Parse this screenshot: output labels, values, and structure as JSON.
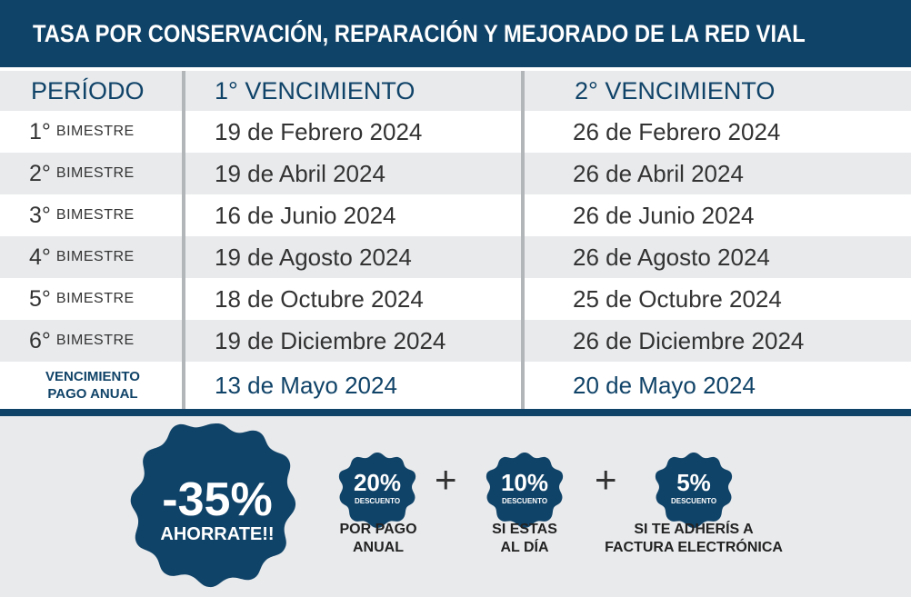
{
  "title": "TASA POR CONSERVACIÓN, REPARACIÓN Y MEJORADO DE LA RED VIAL",
  "colors": {
    "navy": "#104368",
    "stripe": "#e8eaec",
    "text": "#333333"
  },
  "table": {
    "headers": {
      "period": "PERÍODO",
      "first_due": "1° VENCIMIENTO",
      "second_due": "2° VENCIMIENTO"
    },
    "rows": [
      {
        "num": "1°",
        "label": "BIMESTRE",
        "first": "19 de Febrero 2024",
        "second": "26 de Febrero 2024"
      },
      {
        "num": "2°",
        "label": "BIMESTRE",
        "first": "19 de Abril 2024",
        "second": "26 de Abril 2024"
      },
      {
        "num": "3°",
        "label": "BIMESTRE",
        "first": "16 de Junio 2024",
        "second": "26 de Junio 2024"
      },
      {
        "num": "4°",
        "label": "BIMESTRE",
        "first": "19 de Agosto 2024",
        "second": "26 de Agosto 2024"
      },
      {
        "num": "5°",
        "label": "BIMESTRE",
        "first": "18 de Octubre 2024",
        "second": "25 de Octubre 2024"
      },
      {
        "num": "6°",
        "label": "BIMESTRE",
        "first": "19 de Diciembre 2024",
        "second": "26 de Diciembre 2024"
      }
    ],
    "annual": {
      "line1": "VENCIMIENTO",
      "line2": "PAGO ANUAL",
      "first": "13 de Mayo 2024",
      "second": "20 de Mayo 2024"
    }
  },
  "promo": {
    "main_badge": {
      "value": "-35%",
      "label": "AHORRATE!!"
    },
    "plus": "+",
    "discounts": [
      {
        "value": "20%",
        "label": "DESCUENTO",
        "caption_line1": "POR PAGO",
        "caption_line2": "ANUAL"
      },
      {
        "value": "10%",
        "label": "DESCUENTO",
        "caption_line1": "SI ESTAS",
        "caption_line2": "AL DÍA"
      },
      {
        "value": "5%",
        "label": "DESCUENTO",
        "caption_line1": "SI TE ADHERÍS A",
        "caption_line2": "FACTURA ELECTRÓNICA"
      }
    ]
  }
}
